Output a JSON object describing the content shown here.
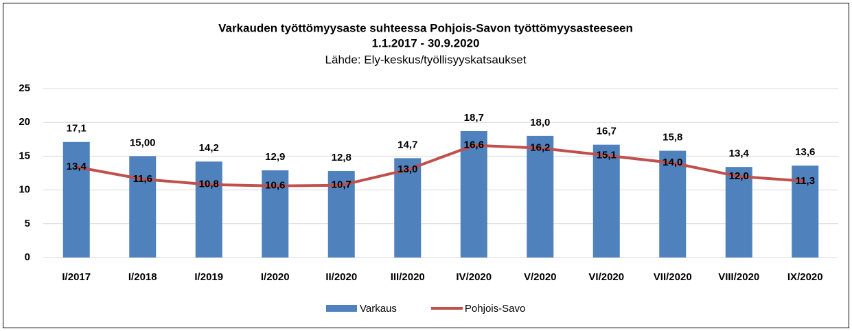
{
  "chart_data": {
    "type": "combo",
    "title": "Varkauden työttömyysaste suhteessa Pohjois-Savon työttömyysasteeseen",
    "subtitle_date": "1.1.2017 - 30.9.2020",
    "subtitle": "Lähde: Ely-keskus/työllisyyskatsaukset",
    "categories": [
      "I/2017",
      "I/2018",
      "I/2019",
      "I/2020",
      "II/2020",
      "III/2020",
      "IV/2020",
      "V/2020",
      "VI/2020",
      "VII/2020",
      "VIII/2020",
      "IX/2020"
    ],
    "series": [
      {
        "name": "Varkaus",
        "type": "bar",
        "color": "#4f81bd",
        "values": [
          17.1,
          15.0,
          14.2,
          12.9,
          12.8,
          14.7,
          18.7,
          18.0,
          16.7,
          15.8,
          13.4,
          13.6
        ],
        "value_labels": [
          "17,1",
          "15,00",
          "14,2",
          "12,9",
          "12,8",
          "14,7",
          "18,7",
          "18,0",
          "16,7",
          "15,8",
          "13,4",
          "13,6"
        ]
      },
      {
        "name": "Pohjois-Savo",
        "type": "line",
        "color": "#c0504d",
        "values": [
          13.4,
          11.6,
          10.8,
          10.6,
          10.7,
          13.0,
          16.6,
          16.2,
          15.1,
          14.0,
          12.0,
          11.3
        ],
        "value_labels": [
          "13,4",
          "11,6",
          "10,8",
          "10,6",
          "10,7",
          "13,0",
          "16,6",
          "16,2",
          "15,1",
          "14,0",
          "12,0",
          "11,3"
        ]
      }
    ],
    "ylim": [
      0,
      25
    ],
    "yticks": [
      0,
      5,
      10,
      15,
      20,
      25
    ],
    "grid": true,
    "legend": "bottom"
  }
}
